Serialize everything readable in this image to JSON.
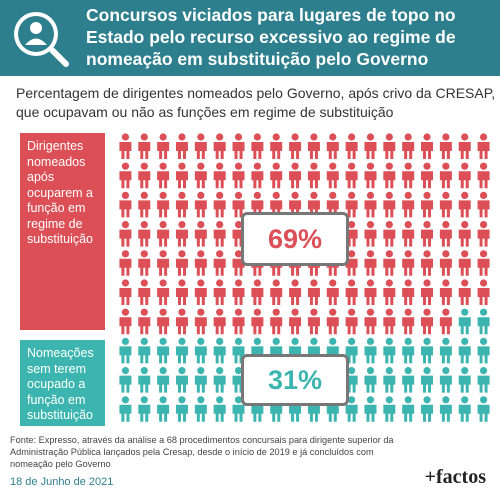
{
  "header": {
    "title": "Concursos viciados para lugares de topo no Estado pelo recurso excessivo ao regime de nomeação em substituição pelo Governo"
  },
  "chart_data": {
    "type": "pictogram",
    "subtitle": "Percentagem de dirigentes nomeados pelo Governo, após crivo da CRESAP, que ocupavam ou não as funções em regime de substituição",
    "categories": [
      "Dirigentes nomeados após ocuparem a função em regime de substituição",
      "Nomeações sem terem ocupado a função em substituição"
    ],
    "values": [
      69,
      31
    ],
    "value_labels": [
      "69%",
      "31%"
    ],
    "colors": [
      "#dc4f56",
      "#3cb5b0"
    ]
  },
  "footer": {
    "source": "Fonte: Expresso, através da análise a 68 procedimentos concursais para dirigente superior da Administração Pública lançados pela Cresap, desde o início de 2019 e já concluídos com nomeação pelo Governo",
    "date": "18 de Junho de 2021",
    "logo": "+factos"
  }
}
